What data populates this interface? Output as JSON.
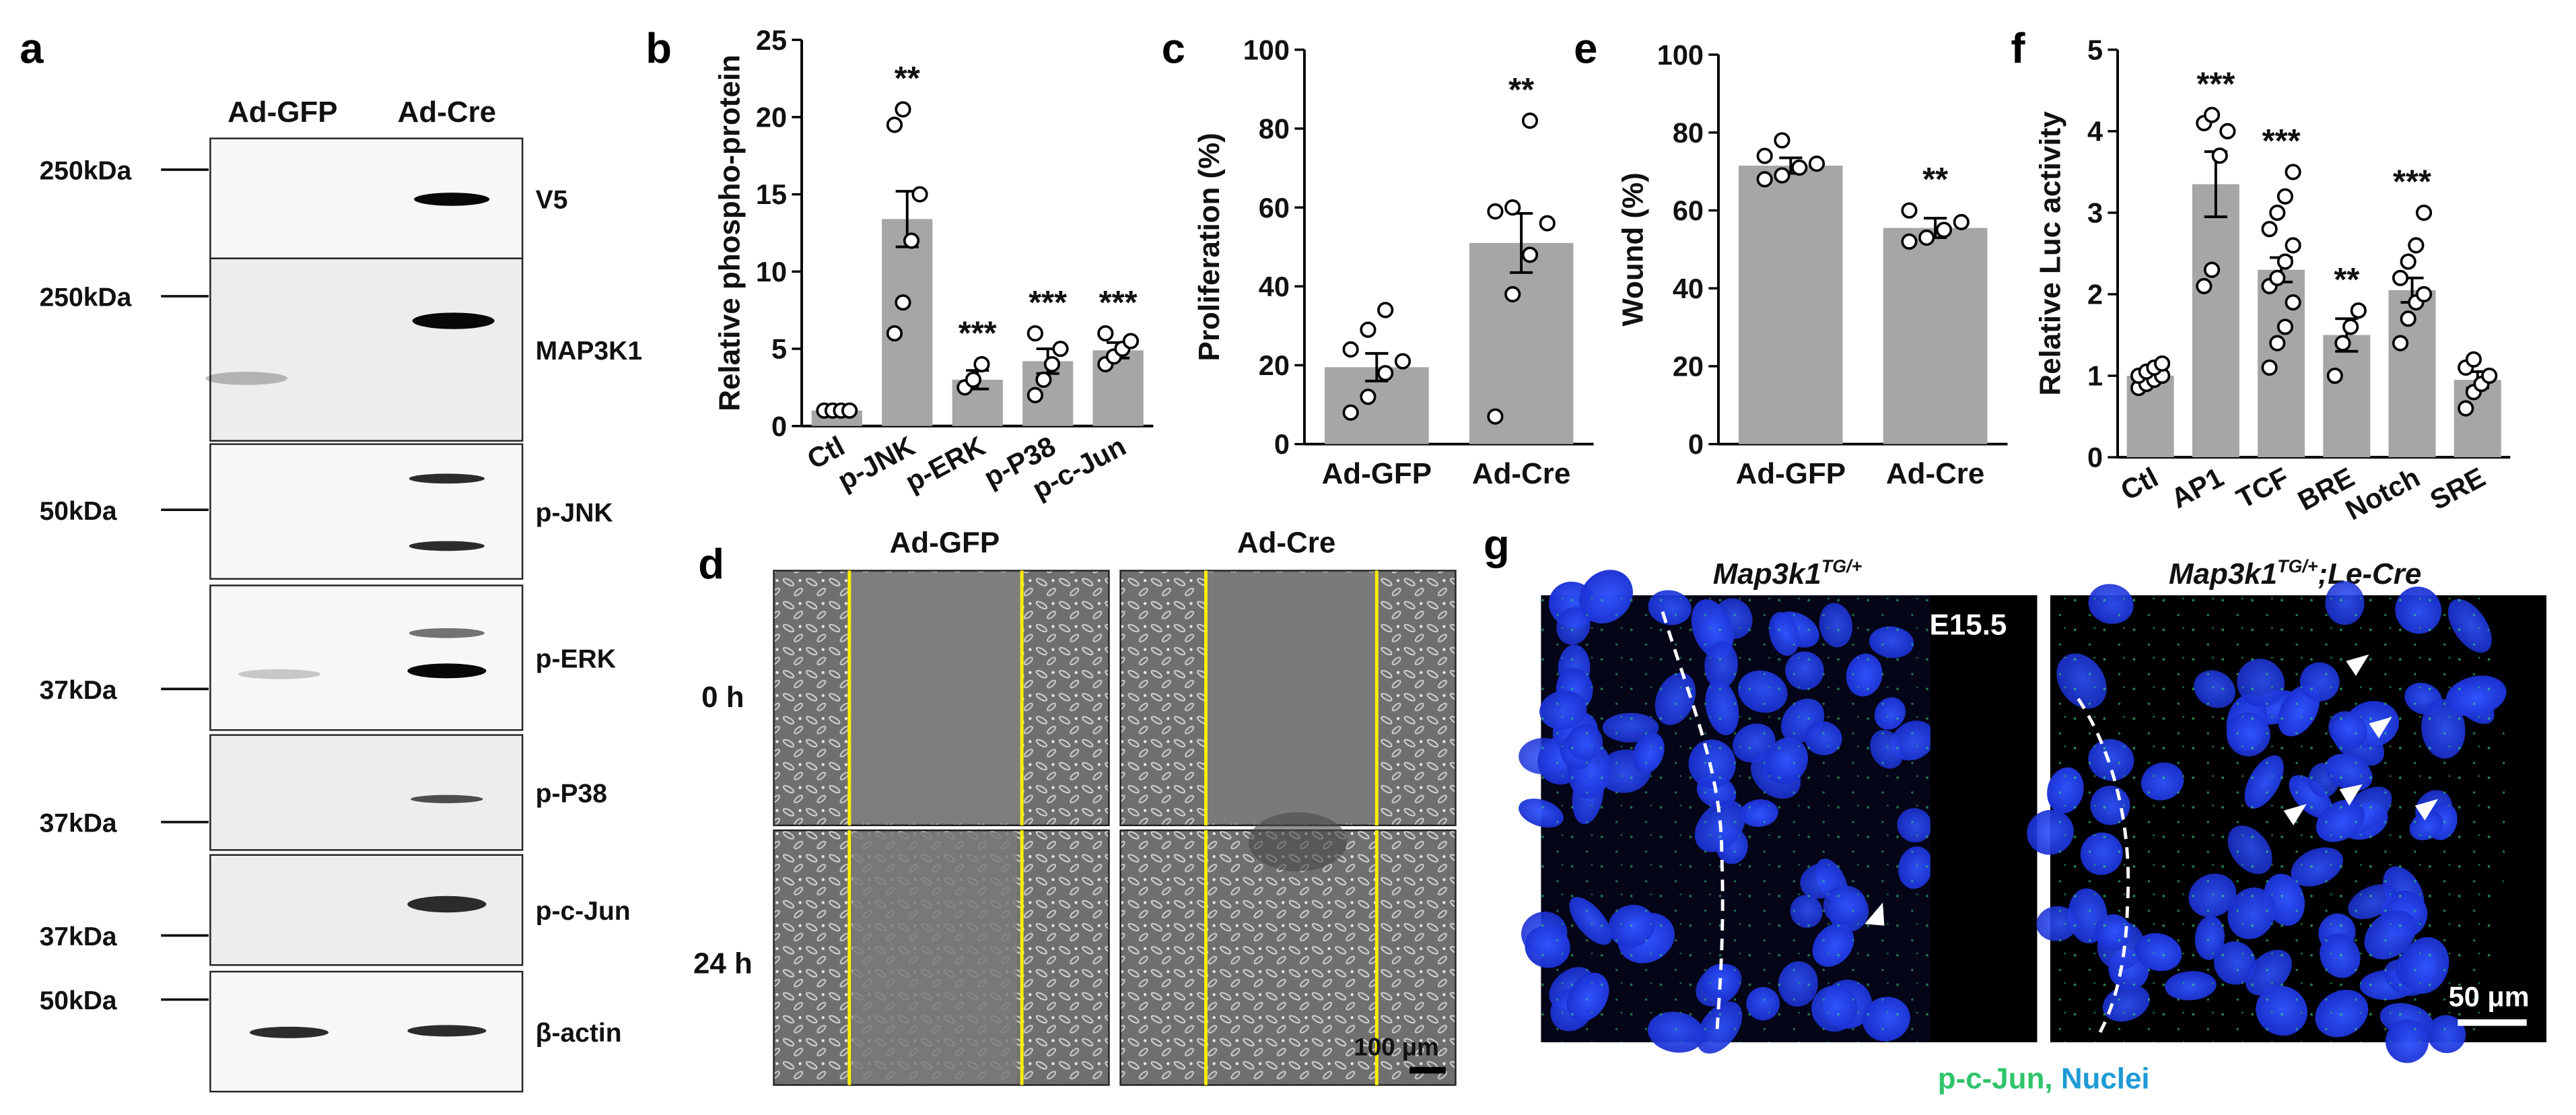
{
  "panel_letters": {
    "a": "a",
    "b": "b",
    "c": "c",
    "d": "d",
    "e": "e",
    "f": "f",
    "g": "g"
  },
  "western": {
    "groups": [
      "Ad-GFP",
      "Ad-Cre"
    ],
    "blots": [
      {
        "name": "V5",
        "marker": "250kDa"
      },
      {
        "name": "MAP3K1",
        "marker": "250kDa"
      },
      {
        "name": "p-JNK",
        "marker": "50kDa"
      },
      {
        "name": "p-ERK",
        "marker": "37kDa"
      },
      {
        "name": "p-P38",
        "marker": "37kDa"
      },
      {
        "name": "p-c-Jun",
        "marker": "37kDa"
      },
      {
        "name": "β-actin",
        "marker": "50kDa"
      }
    ]
  },
  "scratch": {
    "columns": [
      "Ad-GFP",
      "Ad-Cre"
    ],
    "rows": [
      "0 h",
      "24 h"
    ],
    "scale_bar": "100 μm"
  },
  "fluor": {
    "titles": [
      "Map3k1",
      "Map3k1"
    ],
    "superscripts": [
      "TG/+",
      "TG/+"
    ],
    "title_suffix": ";Le-Cre",
    "stage": "E15.5",
    "scale_bar": "50 μm",
    "legend_green": "p-c-Jun,",
    "legend_blue": "Nuclei",
    "colors": {
      "green": "#2fc46a",
      "blue": "#1e9ad6"
    }
  },
  "chart_data": [
    {
      "panel": "b",
      "type": "bar",
      "categories": [
        "Ctl",
        "p-JNK",
        "p-ERK",
        "p-P38",
        "p-c-Jun"
      ],
      "values": [
        1.0,
        13.4,
        3.0,
        4.2,
        4.9
      ],
      "errors": [
        0.1,
        1.8,
        0.6,
        0.8,
        0.5
      ],
      "points": [
        [
          1,
          1,
          1,
          1
        ],
        [
          6,
          8,
          12,
          15,
          19.5,
          20.5
        ],
        [
          2.5,
          3,
          4
        ],
        [
          2,
          3,
          4,
          5,
          6
        ],
        [
          4,
          4.5,
          5,
          5.5,
          6
        ]
      ],
      "significance": [
        "",
        "**",
        "***",
        "***",
        "***"
      ],
      "ylabel": "Relative phospho-protein",
      "ylim": [
        0,
        25
      ],
      "yticks": [
        0,
        5,
        10,
        15,
        20,
        25
      ]
    },
    {
      "panel": "c",
      "type": "bar",
      "categories": [
        "Ad-GFP",
        "Ad-Cre"
      ],
      "values": [
        19.5,
        51
      ],
      "errors": [
        3.5,
        7.5
      ],
      "points": [
        [
          8,
          12,
          18,
          21,
          24,
          29,
          34
        ],
        [
          7,
          38,
          48,
          56,
          59,
          60,
          82
        ]
      ],
      "significance": [
        "",
        "**"
      ],
      "ylabel": "Proliferation (%)",
      "ylim": [
        0,
        100
      ],
      "yticks": [
        0,
        20,
        40,
        60,
        80,
        100
      ]
    },
    {
      "panel": "e",
      "type": "bar",
      "categories": [
        "Ad-GFP",
        "Ad-Cre"
      ],
      "values": [
        71.5,
        55.5
      ],
      "errors": [
        2,
        2.5
      ],
      "points": [
        [
          68,
          69,
          71,
          72,
          74,
          78
        ],
        [
          52,
          53,
          55,
          57,
          60
        ]
      ],
      "significance": [
        "",
        "**"
      ],
      "ylabel": "Wound (%)",
      "ylim": [
        0,
        100
      ],
      "yticks": [
        0,
        20,
        40,
        60,
        80,
        100
      ]
    },
    {
      "panel": "f",
      "type": "bar",
      "categories": [
        "Ctl",
        "AP1",
        "TCF",
        "BRE",
        "Notch",
        "SRE"
      ],
      "values": [
        1.0,
        3.35,
        2.3,
        1.5,
        2.05,
        0.95
      ],
      "errors": [
        0.05,
        0.4,
        0.15,
        0.2,
        0.15,
        0.1
      ],
      "points": [
        [
          0.85,
          0.9,
          0.95,
          1,
          1,
          1.05,
          1.1,
          1.15
        ],
        [
          2.1,
          2.3,
          3.7,
          4,
          4.1,
          4.2
        ],
        [
          1.1,
          1.4,
          1.6,
          1.9,
          2.1,
          2.2,
          2.4,
          2.6,
          2.8,
          3,
          3.2,
          3.5
        ],
        [
          1,
          1.4,
          1.6,
          1.8
        ],
        [
          1.4,
          1.7,
          1.9,
          2,
          2.2,
          2.4,
          2.6,
          3
        ],
        [
          0.6,
          0.8,
          0.9,
          1,
          1.1,
          1.2
        ]
      ],
      "significance": [
        "",
        "***",
        "***",
        "**",
        "***",
        ""
      ],
      "ylabel": "Relative Luc activity",
      "ylim": [
        0,
        5
      ],
      "yticks": [
        0,
        1,
        2,
        3,
        4,
        5
      ]
    }
  ]
}
